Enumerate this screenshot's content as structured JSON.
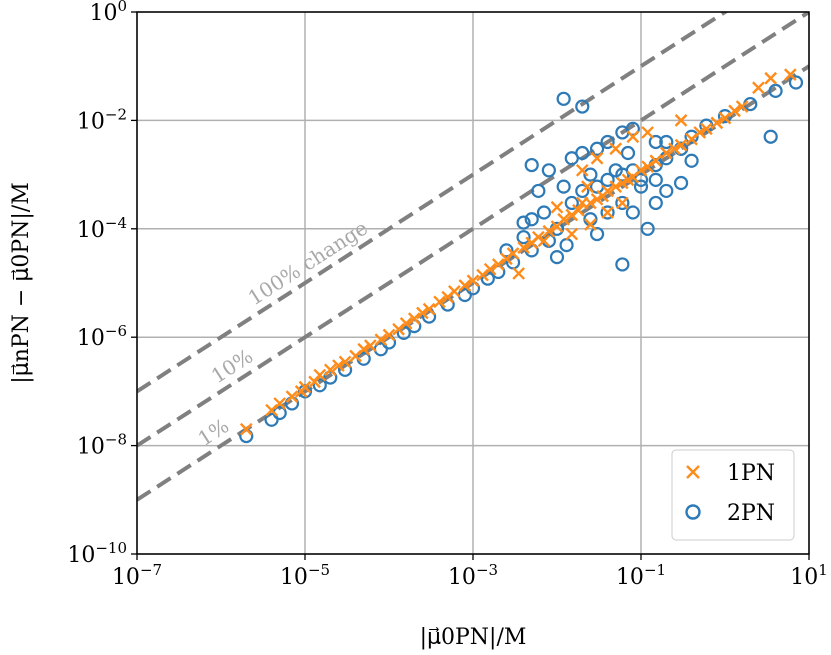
{
  "chart_data": {
    "type": "scatter",
    "xscale": "log",
    "yscale": "log",
    "xlim": [
      1e-07,
      10
    ],
    "ylim": [
      1e-10,
      1
    ],
    "grid": true,
    "legend_position": "lower-right",
    "xlabel": "|μ⃗0PN|/M",
    "ylabel": "|μ⃗nPN − μ⃗0PN|/M",
    "x_ticks": [
      {
        "base": "10",
        "exp": "−7",
        "value": 1e-07
      },
      {
        "base": "10",
        "exp": "−5",
        "value": 1e-05
      },
      {
        "base": "10",
        "exp": "−3",
        "value": 0.001
      },
      {
        "base": "10",
        "exp": "−1",
        "value": 0.1
      },
      {
        "base": "10",
        "exp": "1",
        "value": 10
      }
    ],
    "y_ticks": [
      {
        "base": "10",
        "exp": "−10",
        "value": 1e-10
      },
      {
        "base": "10",
        "exp": "−8",
        "value": 1e-08
      },
      {
        "base": "10",
        "exp": "−6",
        "value": 1e-06
      },
      {
        "base": "10",
        "exp": "−4",
        "value": 0.0001
      },
      {
        "base": "10",
        "exp": "−2",
        "value": 0.01
      },
      {
        "base": "10",
        "exp": "0",
        "value": 1
      }
    ],
    "reference_lines": [
      {
        "label": "100% change",
        "ratio": 1.0
      },
      {
        "label": "10%",
        "ratio": 0.1
      },
      {
        "label": "1%",
        "ratio": 0.01
      }
    ],
    "colors": {
      "1PN": "#ff8c1a",
      "2PN": "#2e7ab6",
      "reference": "#808080",
      "grid": "#b0b0b0"
    },
    "series": [
      {
        "name": "1PN",
        "marker": "x",
        "points": [
          [
            2e-06,
            2e-08
          ],
          [
            4e-06,
            4.5e-08
          ],
          [
            5e-06,
            6e-08
          ],
          [
            7e-06,
            8e-08
          ],
          [
            9e-06,
            1e-07
          ],
          [
            1e-05,
            1.2e-07
          ],
          [
            1.3e-05,
            1.5e-07
          ],
          [
            1.5e-05,
            2e-07
          ],
          [
            2e-05,
            2.5e-07
          ],
          [
            2.5e-05,
            3e-07
          ],
          [
            3e-05,
            3.5e-07
          ],
          [
            4e-05,
            4.5e-07
          ],
          [
            5e-05,
            6e-07
          ],
          [
            6e-05,
            7e-07
          ],
          [
            8e-05,
            9e-07
          ],
          [
            0.0001,
            1.1e-06
          ],
          [
            0.00013,
            1.4e-06
          ],
          [
            0.00016,
            1.8e-06
          ],
          [
            0.0002,
            2.2e-06
          ],
          [
            0.00025,
            2.8e-06
          ],
          [
            0.0003,
            3.3e-06
          ],
          [
            0.0004,
            4.5e-06
          ],
          [
            0.0005,
            5.5e-06
          ],
          [
            0.0006,
            7e-06
          ],
          [
            0.0008,
            9e-06
          ],
          [
            0.001,
            1.1e-05
          ],
          [
            0.0013,
            1.4e-05
          ],
          [
            0.0016,
            1.8e-05
          ],
          [
            0.002,
            2.2e-05
          ],
          [
            0.0025,
            2.8e-05
          ],
          [
            0.003,
            3.5e-05
          ],
          [
            0.004,
            4.5e-05
          ],
          [
            0.005,
            5.5e-05
          ],
          [
            0.006,
            7e-05
          ],
          [
            0.008,
            9e-05
          ],
          [
            0.01,
            0.00011
          ],
          [
            0.012,
            0.00015
          ],
          [
            0.015,
            0.00018
          ],
          [
            0.018,
            0.00022
          ],
          [
            0.02,
            0.0003
          ],
          [
            0.025,
            0.0003
          ],
          [
            0.03,
            0.00035
          ],
          [
            0.035,
            0.0004
          ],
          [
            0.04,
            0.0005
          ],
          [
            0.05,
            0.0006
          ],
          [
            0.06,
            0.0007
          ],
          [
            0.07,
            0.0008
          ],
          [
            0.08,
            0.0009
          ],
          [
            0.1,
            0.0012
          ],
          [
            0.12,
            0.0014
          ],
          [
            0.15,
            0.0018
          ],
          [
            0.2,
            0.0025
          ],
          [
            0.25,
            0.003
          ],
          [
            0.3,
            0.0035
          ],
          [
            0.4,
            0.0045
          ],
          [
            0.5,
            0.006
          ],
          [
            0.6,
            0.007
          ],
          [
            0.8,
            0.009
          ],
          [
            1.0,
            0.011
          ],
          [
            1.3,
            0.015
          ],
          [
            1.6,
            0.018
          ],
          [
            2.5,
            0.04
          ],
          [
            3.5,
            0.06
          ],
          [
            6,
            0.07
          ],
          [
            0.02,
            0.0012
          ],
          [
            0.03,
            0.002
          ],
          [
            0.05,
            0.003
          ],
          [
            0.08,
            0.005
          ],
          [
            0.015,
            8e-05
          ],
          [
            0.025,
            0.00012
          ],
          [
            0.04,
            0.0002
          ],
          [
            0.06,
            0.0003
          ],
          [
            0.01,
            0.00025
          ],
          [
            0.007,
            6e-05
          ],
          [
            0.0035,
            1.5e-05
          ],
          [
            0.023,
            0.0006
          ],
          [
            0.12,
            0.006
          ],
          [
            0.3,
            0.01
          ]
        ]
      },
      {
        "name": "2PN",
        "marker": "o",
        "points": [
          [
            2e-06,
            1.5e-08
          ],
          [
            4e-06,
            3e-08
          ],
          [
            5e-06,
            4e-08
          ],
          [
            7e-06,
            6e-08
          ],
          [
            1e-05,
            1e-07
          ],
          [
            1.5e-05,
            1.3e-07
          ],
          [
            2e-05,
            1.8e-07
          ],
          [
            3e-05,
            2.5e-07
          ],
          [
            5e-05,
            4e-07
          ],
          [
            8e-05,
            6e-07
          ],
          [
            0.0001,
            8e-07
          ],
          [
            0.00015,
            1.2e-06
          ],
          [
            0.0002,
            1.6e-06
          ],
          [
            0.0003,
            2.4e-06
          ],
          [
            0.0005,
            4e-06
          ],
          [
            0.0008,
            6e-06
          ],
          [
            0.001,
            8e-06
          ],
          [
            0.0015,
            1.2e-05
          ],
          [
            0.002,
            1.6e-05
          ],
          [
            0.003,
            2.4e-05
          ],
          [
            0.005,
            4e-05
          ],
          [
            0.008,
            6e-05
          ],
          [
            0.01,
            3e-05
          ],
          [
            0.013,
            5e-05
          ],
          [
            0.012,
            0.025
          ],
          [
            0.02,
            0.018
          ],
          [
            0.005,
            0.0015
          ],
          [
            0.008,
            0.0012
          ],
          [
            0.015,
            0.002
          ],
          [
            0.02,
            0.0025
          ],
          [
            0.03,
            0.003
          ],
          [
            0.04,
            0.004
          ],
          [
            0.06,
            0.006
          ],
          [
            0.08,
            0.007
          ],
          [
            0.15,
            0.004
          ],
          [
            0.2,
            0.004
          ],
          [
            0.3,
            0.003
          ],
          [
            0.02,
            0.0005
          ],
          [
            0.03,
            0.0006
          ],
          [
            0.04,
            0.0008
          ],
          [
            0.06,
            0.001
          ],
          [
            0.08,
            0.0012
          ],
          [
            0.1,
            0.0008
          ],
          [
            0.15,
            0.0015
          ],
          [
            0.2,
            0.002
          ],
          [
            0.3,
            0.003
          ],
          [
            0.4,
            0.005
          ],
          [
            0.6,
            0.008
          ],
          [
            1.0,
            0.012
          ],
          [
            2.0,
            0.02
          ],
          [
            4.0,
            0.035
          ],
          [
            7.0,
            0.05
          ],
          [
            0.025,
            0.00015
          ],
          [
            0.04,
            0.0002
          ],
          [
            0.06,
            0.0003
          ],
          [
            0.08,
            0.0002
          ],
          [
            0.06,
            2.2e-05
          ],
          [
            0.005,
            0.00015
          ],
          [
            0.007,
            0.0002
          ],
          [
            0.01,
            0.0001
          ],
          [
            0.15,
            0.0003
          ],
          [
            0.2,
            0.0005
          ],
          [
            0.3,
            0.0007
          ],
          [
            0.12,
            0.0001
          ],
          [
            0.0025,
            4e-05
          ],
          [
            0.004,
            7e-05
          ],
          [
            0.03,
            8e-05
          ],
          [
            0.1,
            0.0006
          ],
          [
            0.05,
            0.0012
          ],
          [
            0.025,
            0.001
          ],
          [
            0.006,
            0.0005
          ],
          [
            0.4,
            0.0018
          ],
          [
            3.5,
            0.005
          ],
          [
            0.004,
            0.00013
          ],
          [
            0.015,
            0.0003
          ],
          [
            0.07,
            0.0025
          ],
          [
            0.15,
            0.0008
          ],
          [
            0.012,
            0.0006
          ]
        ]
      }
    ]
  }
}
